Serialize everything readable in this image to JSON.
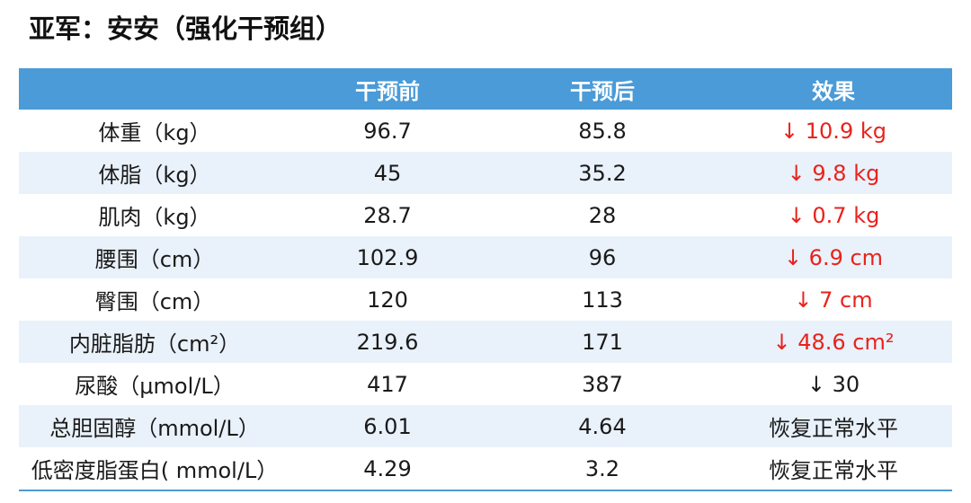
{
  "title": "亚军：安安（强化干预组）",
  "table": {
    "headers": [
      "",
      "干预前",
      "干预后",
      "效果"
    ],
    "rows": [
      {
        "metric": "体重（kg）",
        "before": "96.7",
        "after": "85.8",
        "effect": "↓ 10.9 kg",
        "effect_color": "#e8231d"
      },
      {
        "metric": "体脂（kg）",
        "before": "45",
        "after": "35.2",
        "effect": "↓ 9.8 kg",
        "effect_color": "#e8231d"
      },
      {
        "metric": "肌肉（kg）",
        "before": "28.7",
        "after": "28",
        "effect": "↓ 0.7 kg",
        "effect_color": "#e8231d"
      },
      {
        "metric": "腰围（cm）",
        "before": "102.9",
        "after": "96",
        "effect": "↓ 6.9 cm",
        "effect_color": "#e8231d"
      },
      {
        "metric": "臀围（cm）",
        "before": "120",
        "after": "113",
        "effect": "↓ 7 cm",
        "effect_color": "#e8231d"
      },
      {
        "metric": "内脏脂肪（cm²）",
        "before": "219.6",
        "after": "171",
        "effect": "↓ 48.6 cm²",
        "effect_color": "#e8231d"
      },
      {
        "metric": "尿酸（μmol/L）",
        "before": "417",
        "after": "387",
        "effect": "↓ 30",
        "effect_color": "#1a1a1a"
      },
      {
        "metric": "总胆固醇（mmol/L）",
        "before": "6.01",
        "after": "4.64",
        "effect": "恢复正常水平",
        "effect_color": "#1a1a1a"
      },
      {
        "metric": "低密度脂蛋白( mmol/L）",
        "before": "4.29",
        "after": "3.2",
        "effect": "恢复正常水平",
        "effect_color": "#1a1a1a"
      }
    ]
  },
  "colors": {
    "header_bg": "#4a9bd7",
    "stripe_bg": "#e9f1fa",
    "decrease": "#e8231d"
  }
}
